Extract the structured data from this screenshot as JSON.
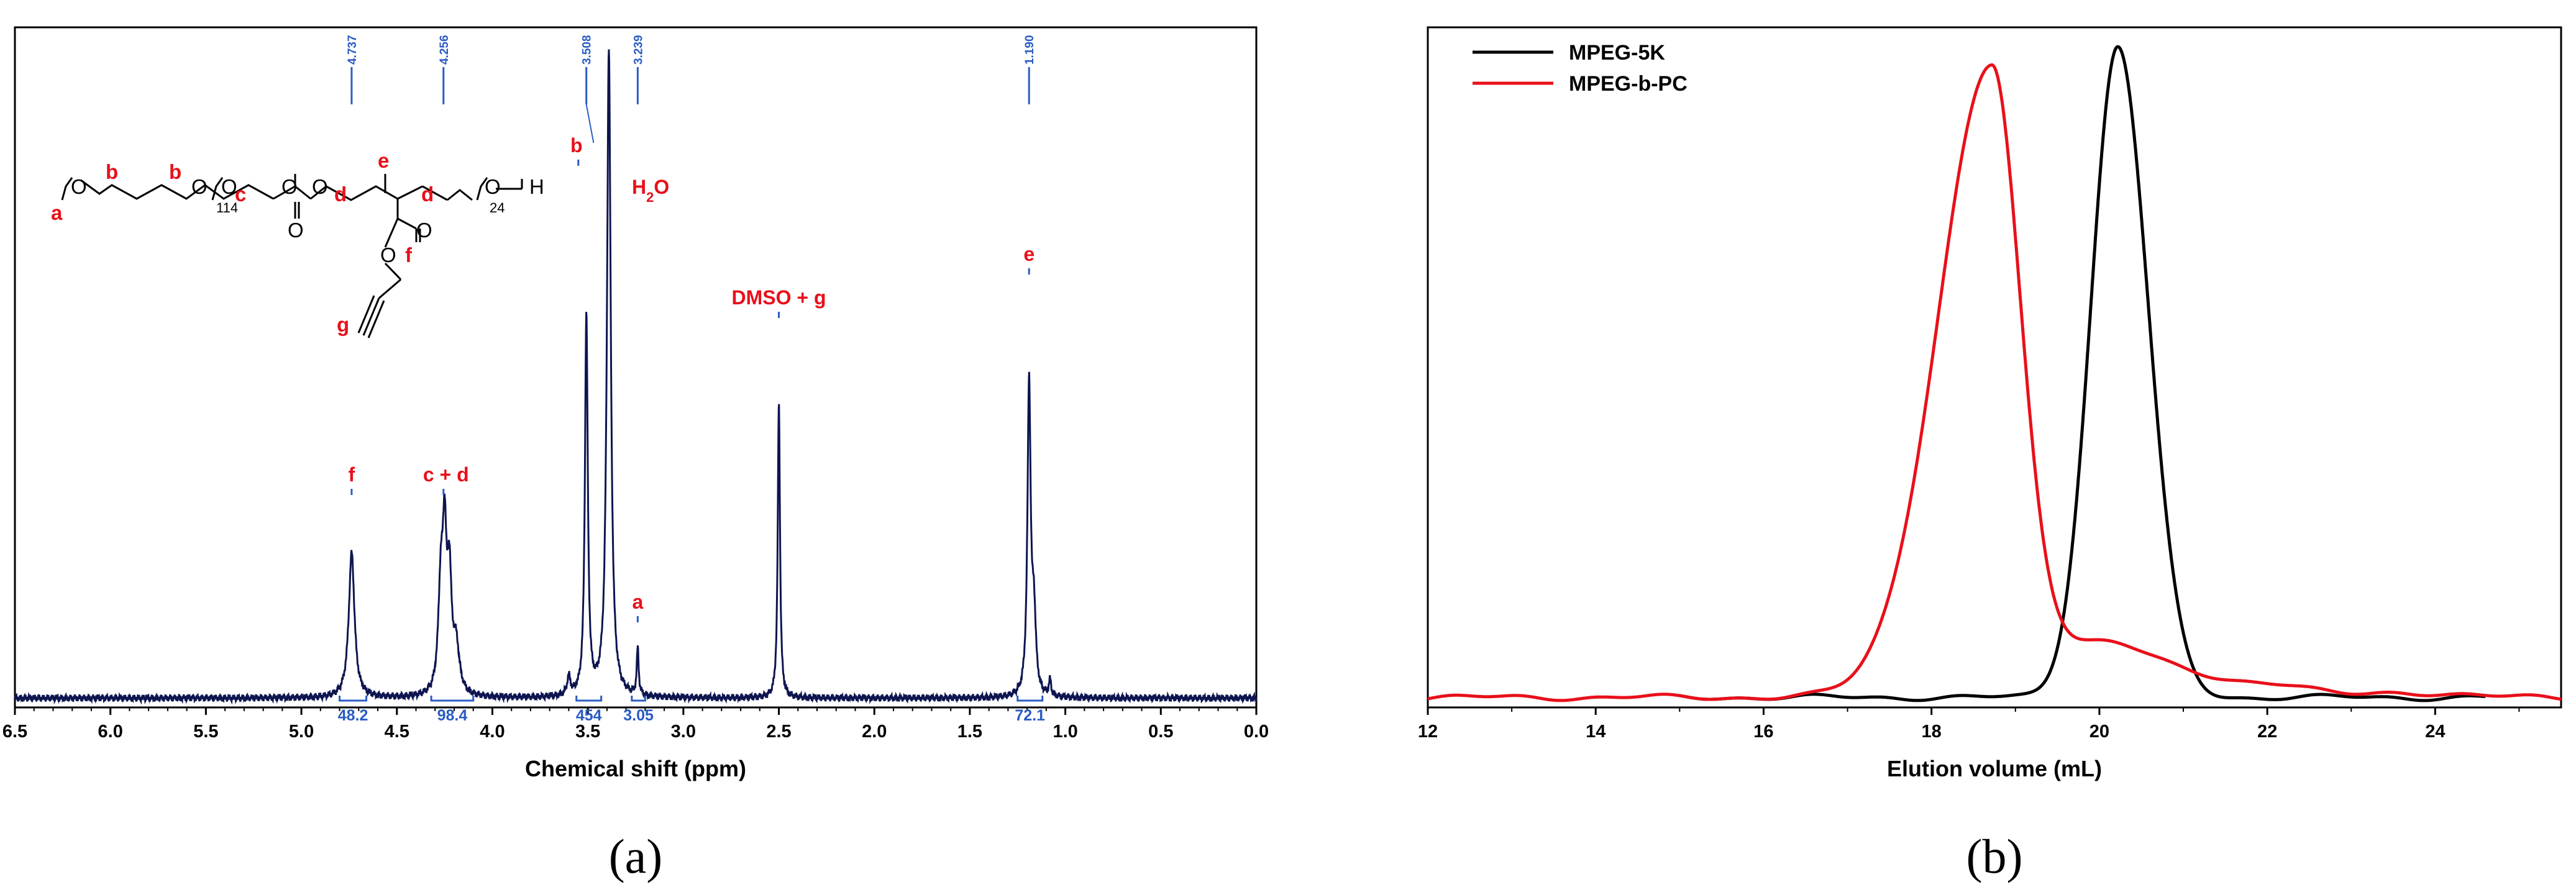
{
  "chart_data": [
    {
      "type": "line",
      "panel": "(a)",
      "xlabel": "Chemical shift (ppm)",
      "ylabel": "",
      "xlim": [
        6.5,
        0.0
      ],
      "x_reversed": true,
      "xticks": [
        "6.5",
        "6.0",
        "5.5",
        "5.0",
        "4.5",
        "4.0",
        "3.5",
        "3.0",
        "2.5",
        "2.0",
        "1.5",
        "1.0",
        "0.5",
        "0.0"
      ],
      "xtick_values": [
        6.5,
        6.0,
        5.5,
        5.0,
        4.5,
        4.0,
        3.5,
        3.0,
        2.5,
        2.0,
        1.5,
        1.0,
        0.5,
        0.0
      ],
      "line_color": "#0d1550",
      "peaks": [
        {
          "shift": 4.737,
          "height": 0.28,
          "width": 0.018
        },
        {
          "shift": 4.27,
          "height": 0.2,
          "width": 0.015
        },
        {
          "shift": 4.25,
          "height": 0.27,
          "width": 0.012
        },
        {
          "shift": 4.225,
          "height": 0.21,
          "width": 0.013
        },
        {
          "shift": 4.19,
          "height": 0.09,
          "width": 0.02
        },
        {
          "shift": 3.6,
          "height": 0.035,
          "width": 0.01
        },
        {
          "shift": 3.508,
          "height": 0.73,
          "width": 0.009
        },
        {
          "shift": 3.39,
          "height": 1.25,
          "width": 0.012
        },
        {
          "shift": 3.239,
          "height": 0.09,
          "width": 0.006
        },
        {
          "shift": 2.5,
          "height": 0.57,
          "width": 0.007
        },
        {
          "shift": 1.19,
          "height": 0.6,
          "width": 0.01
        },
        {
          "shift": 1.165,
          "height": 0.15,
          "width": 0.012
        },
        {
          "shift": 1.08,
          "height": 0.03,
          "width": 0.007
        }
      ],
      "shift_markers": [
        "4.737",
        "4.256",
        "3.508",
        "3.239",
        "1.190"
      ],
      "peak_annotations": [
        {
          "text": "f",
          "shift": 4.737
        },
        {
          "text": "c + d",
          "shift": 4.256
        },
        {
          "text": "b",
          "shift": 3.55
        },
        {
          "text": "H",
          "sub": "2",
          "tail": "O",
          "shift": 3.23
        },
        {
          "text": "a",
          "shift": 3.239
        },
        {
          "text": "DMSO + g",
          "shift": 2.5
        },
        {
          "text": "e",
          "shift": 1.19
        }
      ],
      "integrations": [
        {
          "value": "48.2",
          "from": 4.8,
          "to": 4.66
        },
        {
          "value": "98.4",
          "from": 4.32,
          "to": 4.1
        },
        {
          "value": "454",
          "from": 3.56,
          "to": 3.43
        },
        {
          "value": "3.05",
          "from": 3.27,
          "to": 3.2
        },
        {
          "value": "72.1",
          "from": 1.25,
          "to": 1.12
        }
      ],
      "structure": {
        "labels": [
          "a",
          "b",
          "b",
          "c",
          "d",
          "d",
          "e",
          "f",
          "g"
        ],
        "subscripts": [
          "114",
          "24"
        ],
        "atoms": [
          "O",
          "O",
          "O",
          "O",
          "O",
          "O",
          "O",
          "O",
          "O",
          "H"
        ]
      }
    },
    {
      "type": "line",
      "panel": "(b)",
      "xlabel": "Elution volume (mL)",
      "ylabel": "",
      "xlim": [
        12,
        25.5
      ],
      "xticks": [
        "12",
        "14",
        "16",
        "18",
        "20",
        "22",
        "24"
      ],
      "xtick_values": [
        12,
        14,
        16,
        18,
        20,
        22,
        24
      ],
      "legend_position": "top-left",
      "series": [
        {
          "name": "MPEG-5K",
          "color": "#000000",
          "x_range": [
            15.0,
            24.6
          ],
          "baseline": 0.005,
          "components": [
            {
              "center": 20.22,
              "height": 1.0,
              "sigma_left": 0.32,
              "sigma_right": 0.36
            }
          ]
        },
        {
          "name": "MPEG-b-PC",
          "color": "#e8101a",
          "x_range": [
            12.0,
            25.5
          ],
          "baseline": 0.005,
          "components": [
            {
              "center": 18.72,
              "height": 0.88,
              "sigma_left": 0.65,
              "sigma_right": 0.33
            },
            {
              "center": 18.72,
              "height": 0.09,
              "sigma_left": 0.55,
              "sigma_right": 1.0
            },
            {
              "center": 20.2,
              "height": 0.05,
              "sigma_left": 0.5,
              "sigma_right": 0.5
            },
            {
              "center": 21.3,
              "height": 0.025,
              "sigma_left": 0.6,
              "sigma_right": 0.6
            },
            {
              "center": 22.2,
              "height": 0.013,
              "sigma_left": 0.35,
              "sigma_right": 0.35
            },
            {
              "center": 23.7,
              "height": 0.008,
              "sigma_left": 0.5,
              "sigma_right": 0.5
            }
          ]
        }
      ]
    }
  ],
  "panel_labels": {
    "a": "(a)",
    "b": "(b)"
  }
}
